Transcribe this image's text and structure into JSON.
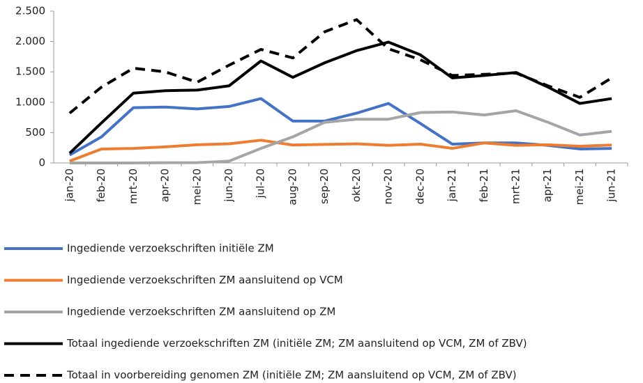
{
  "chart_data": {
    "type": "line",
    "categories": [
      "jan-20",
      "feb-20",
      "mrt-20",
      "apr-20",
      "mei-20",
      "jun-20",
      "jul-20",
      "aug-20",
      "sep-20",
      "okt-20",
      "nov-20",
      "dec-20",
      "jan-21",
      "feb-21",
      "mrt-21",
      "apr-21",
      "mei-21",
      "jun-21"
    ],
    "series": [
      {
        "name": "Ingediende verzoekschriften initiële ZM",
        "color": "#4472c4",
        "values": [
          130,
          430,
          910,
          920,
          890,
          930,
          1060,
          690,
          690,
          820,
          980,
          650,
          310,
          330,
          330,
          290,
          230,
          240
        ]
      },
      {
        "name": "Ingediende verzoekschriften ZM aansluitend op VCM",
        "color": "#ed7d31",
        "values": [
          30,
          230,
          240,
          265,
          300,
          315,
          375,
          295,
          305,
          315,
          290,
          310,
          240,
          330,
          290,
          300,
          275,
          295
        ]
      },
      {
        "name": "Ingediende verzoekschriften ZM aansluitend op ZM",
        "color": "#a5a5a5",
        "values": [
          0,
          0,
          0,
          5,
          5,
          30,
          240,
          430,
          670,
          720,
          720,
          830,
          840,
          790,
          860,
          670,
          460,
          520
        ]
      },
      {
        "name": "Totaal ingediende verzoekschriften ZM (initiële ZM; ZM aansluitend op VCM, ZM of ZBV)",
        "color": "#000000",
        "values": [
          160,
          660,
          1150,
          1190,
          1200,
          1270,
          1680,
          1410,
          1650,
          1850,
          1990,
          1780,
          1400,
          1440,
          1490,
          1250,
          980,
          1060
        ]
      },
      {
        "name": "Totaal in voorbereiding genomen ZM (initiële ZM; ZM aansluitend op VCM, ZM of ZBV)",
        "color": "#000000",
        "dashed": true,
        "values": [
          820,
          1250,
          1560,
          1500,
          1330,
          1610,
          1870,
          1730,
          2160,
          2360,
          1880,
          1700,
          1440,
          1460,
          1480,
          1270,
          1080,
          1400
        ]
      }
    ],
    "ylim": [
      0,
      2500
    ],
    "yticks": [
      0,
      500,
      {
        "value": 1000,
        "label": "1.000"
      },
      {
        "value": 1500,
        "label": "1.500"
      },
      {
        "value": 2000,
        "label": "2.000"
      },
      {
        "value": 2500,
        "label": "2.500"
      }
    ],
    "legend": "bottom"
  }
}
